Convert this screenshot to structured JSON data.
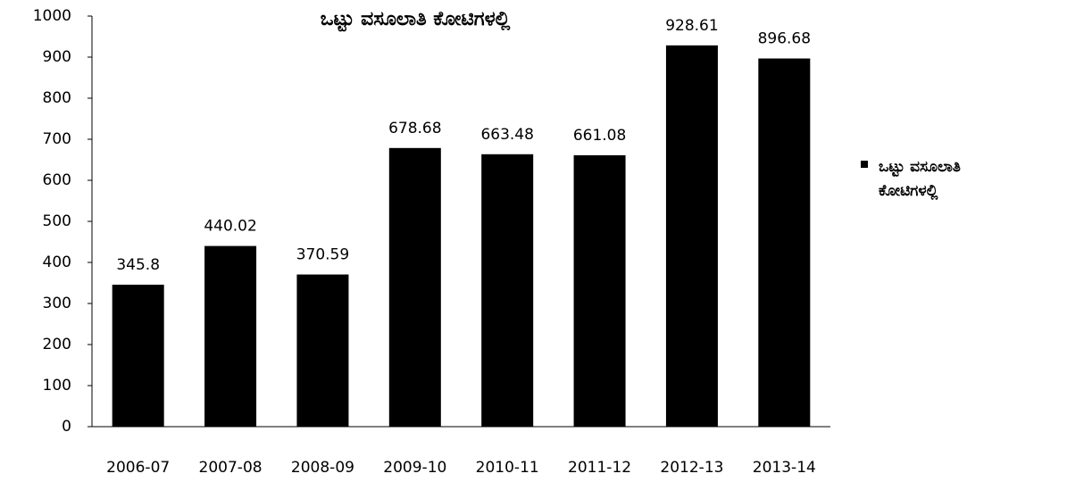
{
  "chart_data": {
    "type": "bar",
    "title": "ಒಟ್ಟು ವಸೂಲಾತಿ ಕೋಟಿಗಳಲ್ಲಿ",
    "categories": [
      "2006-07",
      "2007-08",
      "2008-09",
      "2009-10",
      "2010-11",
      "2011-12",
      "2012-13",
      "2013-14"
    ],
    "series": [
      {
        "name": "ಒಟ್ಟು ವಸೂಲಾತಿ ಕೋಟಿಗಳಲ್ಲಿ",
        "color": "#000000",
        "values": [
          345.8,
          440.02,
          370.59,
          678.68,
          663.48,
          661.08,
          928.61,
          896.68
        ]
      }
    ],
    "ylim": [
      0,
      1000
    ],
    "yticks": [
      0,
      100,
      200,
      300,
      400,
      500,
      600,
      700,
      800,
      900,
      1000
    ],
    "grid": false,
    "legend": "right"
  }
}
